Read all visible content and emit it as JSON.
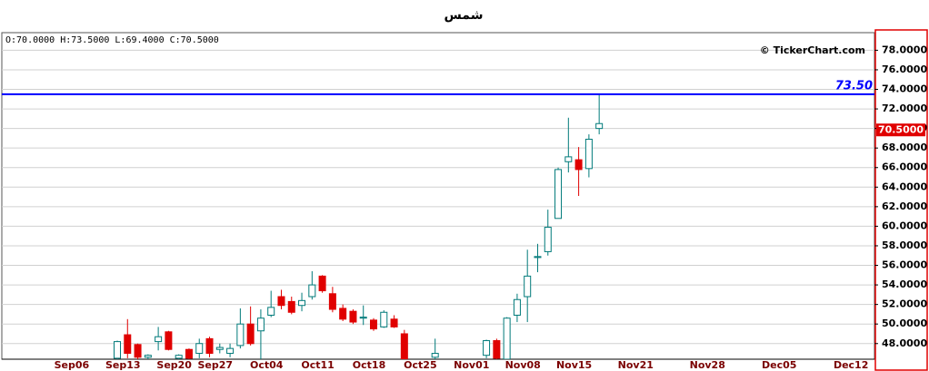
{
  "chart_data": {
    "type": "candlestick",
    "title": "شمس",
    "info": "O:70.0000  H:73.5000  L:69.4000  C:70.5000",
    "watermark": "© TickerChart.com",
    "categories": [
      null,
      null,
      null,
      null,
      null,
      null,
      "Sep06",
      null,
      null,
      null,
      null,
      "Sep13",
      null,
      null,
      null,
      null,
      "Sep20",
      null,
      null,
      null,
      "Sep27",
      null,
      null,
      null,
      null,
      "Oct04",
      null,
      null,
      null,
      null,
      "Oct11",
      null,
      null,
      null,
      null,
      "Oct18",
      null,
      null,
      null,
      null,
      "Oct25",
      null,
      null,
      null,
      null,
      "Nov01",
      null,
      null,
      null,
      null,
      "Nov08",
      null,
      null,
      null,
      null,
      "Nov15",
      null,
      null,
      null,
      null,
      null,
      "Nov21",
      null,
      null,
      null,
      null,
      null,
      null,
      "Nov28",
      null,
      null,
      null,
      null,
      null,
      null,
      "Dec05",
      null,
      null,
      null,
      null,
      null,
      null,
      "Dec12"
    ],
    "open": [
      null,
      null,
      null,
      null,
      null,
      null,
      null,
      null,
      null,
      null,
      46.5,
      48.9,
      47.9,
      46.6,
      48.2,
      49.2,
      46.5,
      47.4,
      47.0,
      48.5,
      47.4,
      47.0,
      47.8,
      50.0,
      49.3,
      50.9,
      52.8,
      52.3,
      51.9,
      52.8,
      54.9,
      53.1,
      51.6,
      51.3,
      50.6,
      50.4,
      49.7,
      50.5,
      49.0,
      null,
      null,
      46.6,
      null,
      null,
      null,
      null,
      46.8,
      48.3,
      46.4,
      50.9,
      52.8,
      56.8,
      57.4,
      60.8,
      66.6,
      66.8,
      65.9,
      70.0,
      null,
      null,
      null,
      null,
      null,
      null,
      null,
      null,
      null,
      null,
      null,
      null,
      null,
      null,
      null,
      null,
      null,
      null,
      null,
      null,
      null,
      null,
      null,
      null,
      null
    ],
    "high": [
      null,
      null,
      null,
      null,
      null,
      null,
      null,
      null,
      null,
      null,
      48.3,
      50.5,
      48.0,
      46.9,
      49.7,
      49.3,
      46.9,
      47.5,
      48.5,
      48.7,
      48.0,
      48.0,
      51.6,
      51.8,
      51.5,
      53.4,
      53.5,
      52.8,
      53.2,
      55.4,
      55.0,
      53.8,
      52.0,
      51.5,
      51.9,
      50.6,
      51.4,
      50.9,
      49.4,
      null,
      null,
      48.5,
      null,
      null,
      null,
      null,
      48.4,
      48.5,
      50.7,
      53.1,
      57.6,
      58.2,
      61.7,
      66.0,
      71.1,
      68.1,
      69.4,
      73.5,
      null,
      null,
      null,
      null,
      null,
      null,
      null,
      null,
      null,
      null,
      null,
      null,
      null,
      null,
      null,
      null,
      null,
      null,
      null,
      null,
      null,
      null,
      null,
      null,
      null
    ],
    "low": [
      null,
      null,
      null,
      null,
      null,
      null,
      null,
      null,
      null,
      null,
      46.4,
      46.5,
      46.4,
      46.4,
      47.3,
      47.3,
      46.4,
      46.4,
      46.5,
      46.6,
      47.0,
      46.6,
      47.5,
      47.8,
      46.4,
      50.7,
      51.5,
      51.0,
      51.3,
      52.5,
      53.2,
      51.2,
      50.3,
      50.0,
      49.9,
      49.3,
      49.6,
      49.6,
      46.4,
      null,
      null,
      46.4,
      null,
      null,
      null,
      null,
      46.5,
      46.4,
      46.4,
      50.2,
      50.2,
      55.3,
      57.0,
      60.8,
      65.5,
      63.1,
      65.0,
      69.4,
      null,
      null,
      null,
      null,
      null,
      null,
      null,
      null,
      null,
      null,
      null,
      null,
      null,
      null,
      null,
      null,
      null,
      null,
      null,
      null,
      null,
      null,
      null,
      null,
      null
    ],
    "close": [
      null,
      null,
      null,
      null,
      null,
      null,
      null,
      null,
      null,
      null,
      48.2,
      47.0,
      46.6,
      46.8,
      48.7,
      47.4,
      46.8,
      46.5,
      48.0,
      47.0,
      47.6,
      47.5,
      50.0,
      48.0,
      50.6,
      51.7,
      51.9,
      51.2,
      52.4,
      54.0,
      53.4,
      51.5,
      50.5,
      50.2,
      50.7,
      49.5,
      51.2,
      49.7,
      46.4,
      null,
      null,
      47.0,
      null,
      null,
      null,
      null,
      48.3,
      46.5,
      50.6,
      52.5,
      54.9,
      56.9,
      59.9,
      65.8,
      67.1,
      65.8,
      68.9,
      70.5,
      null,
      null,
      null,
      null,
      null,
      null,
      null,
      null,
      null,
      null,
      null,
      null,
      null,
      null,
      null,
      null,
      null,
      null,
      null,
      null,
      null,
      null,
      null,
      null,
      null
    ],
    "up_color": "#ffffff",
    "up_stroke": "#007a7a",
    "down_color": "#e00000",
    "wick_color": "#007a7a",
    "ylim": [
      46.4,
      79.8
    ],
    "yticks": [
      {
        "value": 48,
        "label": "48.0000"
      },
      {
        "value": 50,
        "label": "50.0000"
      },
      {
        "value": 52,
        "label": "52.0000"
      },
      {
        "value": 54,
        "label": "54.0000"
      },
      {
        "value": 56,
        "label": "56.0000"
      },
      {
        "value": 58,
        "label": "58.0000"
      },
      {
        "value": 60,
        "label": "60.0000"
      },
      {
        "value": 62,
        "label": "62.0000"
      },
      {
        "value": 64,
        "label": "64.0000"
      },
      {
        "value": 66,
        "label": "66.0000"
      },
      {
        "value": 68,
        "label": "68.0000"
      },
      {
        "value": 70,
        "label": "70.0000"
      },
      {
        "value": 72,
        "label": "72.0000"
      },
      {
        "value": 74,
        "label": "74.0000"
      },
      {
        "value": 76,
        "label": "76.0000"
      },
      {
        "value": 78,
        "label": "78.0000"
      }
    ],
    "grid": true,
    "hline": {
      "value": 73.5,
      "label": "73.50",
      "color": "#0000ff"
    },
    "last_price": {
      "value": 70.5,
      "label": "70.5000",
      "color": "#e00000"
    }
  }
}
